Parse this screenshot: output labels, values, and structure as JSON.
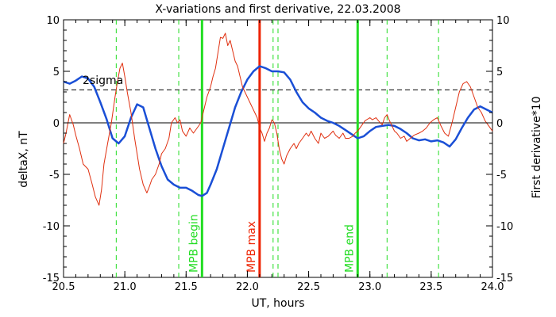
{
  "chart_data": {
    "type": "line",
    "title": "X-variations and first derivative, 22.03.2008",
    "xlabel": "UT, hours",
    "ylabel_left": "deltaX, nT",
    "ylabel_right": "First derivative*10",
    "xlim": [
      20.5,
      24.0
    ],
    "ylim_left": [
      -15,
      10
    ],
    "ylim_right": [
      -15,
      10
    ],
    "x_ticks": [
      "20.5",
      "21.0",
      "21.5",
      "22.0",
      "22.5",
      "23.0",
      "23.5",
      "24.0"
    ],
    "y_ticks_left": [
      "10",
      "5",
      "0",
      "-5",
      "-10",
      "-15"
    ],
    "y_ticks_right": [
      "10",
      "5",
      "0",
      "-5",
      "-10",
      "-15"
    ],
    "colors": {
      "deltaX": "#1a4fd6",
      "derivative": "#e03010",
      "mpb": "#22dd22",
      "max": "#ee2200",
      "axis_left_label": "#1a4fd6",
      "axis_right_label": "#e03010"
    },
    "sigma": {
      "label": "2sigma",
      "value": 3.2
    },
    "zero_line": 0,
    "vertical_lines": [
      {
        "x": 21.63,
        "label": "MPB begin",
        "kind": "mpb"
      },
      {
        "x": 22.1,
        "label": "MPB max",
        "kind": "max"
      },
      {
        "x": 22.9,
        "label": "MPB end",
        "kind": "mpb"
      }
    ],
    "dashed_verticals": [
      20.93,
      21.44,
      22.21,
      22.25,
      23.14,
      23.56
    ],
    "series": [
      {
        "key": "deltaX",
        "points": [
          [
            20.5,
            4.0
          ],
          [
            20.55,
            3.8
          ],
          [
            20.6,
            4.1
          ],
          [
            20.65,
            4.5
          ],
          [
            20.7,
            4.3
          ],
          [
            20.75,
            3.5
          ],
          [
            20.8,
            2.0
          ],
          [
            20.85,
            0.4
          ],
          [
            20.9,
            -1.5
          ],
          [
            20.95,
            -2.0
          ],
          [
            21.0,
            -1.3
          ],
          [
            21.05,
            0.5
          ],
          [
            21.1,
            1.8
          ],
          [
            21.15,
            1.5
          ],
          [
            21.2,
            -0.5
          ],
          [
            21.25,
            -2.5
          ],
          [
            21.3,
            -4.2
          ],
          [
            21.35,
            -5.5
          ],
          [
            21.4,
            -6.0
          ],
          [
            21.45,
            -6.3
          ],
          [
            21.5,
            -6.3
          ],
          [
            21.55,
            -6.6
          ],
          [
            21.6,
            -7.0
          ],
          [
            21.63,
            -7.1
          ],
          [
            21.67,
            -6.8
          ],
          [
            21.7,
            -6.0
          ],
          [
            21.75,
            -4.5
          ],
          [
            21.8,
            -2.5
          ],
          [
            21.85,
            -0.5
          ],
          [
            21.9,
            1.5
          ],
          [
            21.95,
            3.0
          ],
          [
            22.0,
            4.2
          ],
          [
            22.05,
            5.0
          ],
          [
            22.1,
            5.5
          ],
          [
            22.15,
            5.3
          ],
          [
            22.2,
            5.0
          ],
          [
            22.25,
            5.0
          ],
          [
            22.3,
            4.9
          ],
          [
            22.35,
            4.2
          ],
          [
            22.4,
            3.0
          ],
          [
            22.45,
            2.0
          ],
          [
            22.5,
            1.4
          ],
          [
            22.55,
            1.0
          ],
          [
            22.6,
            0.5
          ],
          [
            22.65,
            0.2
          ],
          [
            22.7,
            0.0
          ],
          [
            22.75,
            -0.3
          ],
          [
            22.8,
            -0.7
          ],
          [
            22.85,
            -1.1
          ],
          [
            22.9,
            -1.5
          ],
          [
            22.95,
            -1.3
          ],
          [
            23.0,
            -0.8
          ],
          [
            23.05,
            -0.4
          ],
          [
            23.1,
            -0.3
          ],
          [
            23.15,
            -0.2
          ],
          [
            23.2,
            -0.3
          ],
          [
            23.25,
            -0.6
          ],
          [
            23.3,
            -1.0
          ],
          [
            23.35,
            -1.5
          ],
          [
            23.4,
            -1.7
          ],
          [
            23.45,
            -1.6
          ],
          [
            23.5,
            -1.8
          ],
          [
            23.55,
            -1.7
          ],
          [
            23.6,
            -1.9
          ],
          [
            23.65,
            -2.3
          ],
          [
            23.7,
            -1.6
          ],
          [
            23.75,
            -0.5
          ],
          [
            23.8,
            0.5
          ],
          [
            23.85,
            1.3
          ],
          [
            23.9,
            1.6
          ],
          [
            23.95,
            1.3
          ],
          [
            24.0,
            1.0
          ]
        ]
      },
      {
        "key": "derivative",
        "points": [
          [
            20.5,
            -2.0
          ],
          [
            20.52,
            -1.0
          ],
          [
            20.55,
            0.8
          ],
          [
            20.58,
            -0.2
          ],
          [
            20.6,
            -1.2
          ],
          [
            20.63,
            -2.5
          ],
          [
            20.66,
            -4.0
          ],
          [
            20.7,
            -4.5
          ],
          [
            20.73,
            -5.8
          ],
          [
            20.76,
            -7.2
          ],
          [
            20.79,
            -8.0
          ],
          [
            20.81,
            -6.5
          ],
          [
            20.83,
            -4.0
          ],
          [
            20.86,
            -2.0
          ],
          [
            20.89,
            0.0
          ],
          [
            20.92,
            2.5
          ],
          [
            20.94,
            4.0
          ],
          [
            20.96,
            5.3
          ],
          [
            20.98,
            5.8
          ],
          [
            21.0,
            4.5
          ],
          [
            21.02,
            3.0
          ],
          [
            21.05,
            1.0
          ],
          [
            21.08,
            -1.5
          ],
          [
            21.1,
            -3.0
          ],
          [
            21.12,
            -4.5
          ],
          [
            21.15,
            -6.0
          ],
          [
            21.18,
            -6.8
          ],
          [
            21.2,
            -6.2
          ],
          [
            21.22,
            -5.5
          ],
          [
            21.25,
            -5.0
          ],
          [
            21.28,
            -4.0
          ],
          [
            21.3,
            -3.0
          ],
          [
            21.33,
            -2.5
          ],
          [
            21.36,
            -1.5
          ],
          [
            21.38,
            0.0
          ],
          [
            21.41,
            0.5
          ],
          [
            21.43,
            0.0
          ],
          [
            21.45,
            0.3
          ],
          [
            21.47,
            -0.8
          ],
          [
            21.5,
            -1.3
          ],
          [
            21.53,
            -0.5
          ],
          [
            21.56,
            -1.0
          ],
          [
            21.59,
            -0.5
          ],
          [
            21.62,
            0.0
          ],
          [
            21.65,
            1.5
          ],
          [
            21.67,
            2.5
          ],
          [
            21.7,
            3.5
          ],
          [
            21.72,
            4.5
          ],
          [
            21.74,
            5.3
          ],
          [
            21.76,
            6.8
          ],
          [
            21.78,
            8.3
          ],
          [
            21.8,
            8.2
          ],
          [
            21.82,
            8.7
          ],
          [
            21.84,
            7.5
          ],
          [
            21.86,
            8.0
          ],
          [
            21.88,
            7.0
          ],
          [
            21.9,
            6.0
          ],
          [
            21.92,
            5.5
          ],
          [
            21.94,
            4.5
          ],
          [
            21.96,
            3.5
          ],
          [
            21.98,
            3.0
          ],
          [
            22.0,
            2.5
          ],
          [
            22.02,
            2.0
          ],
          [
            22.04,
            1.5
          ],
          [
            22.06,
            1.0
          ],
          [
            22.08,
            0.5
          ],
          [
            22.1,
            -0.5
          ],
          [
            22.12,
            -1.0
          ],
          [
            22.14,
            -1.8
          ],
          [
            22.16,
            -1.0
          ],
          [
            22.18,
            -0.5
          ],
          [
            22.2,
            0.3
          ],
          [
            22.22,
            0.0
          ],
          [
            22.24,
            -1.0
          ],
          [
            22.26,
            -2.5
          ],
          [
            22.28,
            -3.5
          ],
          [
            22.3,
            -4.0
          ],
          [
            22.32,
            -3.2
          ],
          [
            22.35,
            -2.5
          ],
          [
            22.38,
            -2.0
          ],
          [
            22.4,
            -2.5
          ],
          [
            22.42,
            -2.0
          ],
          [
            22.45,
            -1.5
          ],
          [
            22.48,
            -1.0
          ],
          [
            22.5,
            -1.3
          ],
          [
            22.52,
            -0.8
          ],
          [
            22.55,
            -1.5
          ],
          [
            22.58,
            -2.0
          ],
          [
            22.6,
            -1.0
          ],
          [
            22.63,
            -1.5
          ],
          [
            22.66,
            -1.3
          ],
          [
            22.7,
            -0.8
          ],
          [
            22.72,
            -1.2
          ],
          [
            22.75,
            -1.5
          ],
          [
            22.78,
            -1.0
          ],
          [
            22.8,
            -1.5
          ],
          [
            22.83,
            -1.5
          ],
          [
            22.86,
            -1.3
          ],
          [
            22.88,
            -1.0
          ],
          [
            22.9,
            -0.8
          ],
          [
            22.93,
            -0.3
          ],
          [
            22.96,
            0.2
          ],
          [
            23.0,
            0.5
          ],
          [
            23.02,
            0.3
          ],
          [
            23.05,
            0.5
          ],
          [
            23.07,
            0.2
          ],
          [
            23.1,
            -0.2
          ],
          [
            23.12,
            0.5
          ],
          [
            23.14,
            0.8
          ],
          [
            23.16,
            0.2
          ],
          [
            23.18,
            -0.3
          ],
          [
            23.2,
            -0.8
          ],
          [
            23.22,
            -1.0
          ],
          [
            23.25,
            -1.5
          ],
          [
            23.28,
            -1.3
          ],
          [
            23.3,
            -1.8
          ],
          [
            23.33,
            -1.5
          ],
          [
            23.36,
            -1.2
          ],
          [
            23.4,
            -1.0
          ],
          [
            23.43,
            -0.8
          ],
          [
            23.46,
            -0.5
          ],
          [
            23.49,
            0.0
          ],
          [
            23.52,
            0.3
          ],
          [
            23.55,
            0.5
          ],
          [
            23.58,
            -0.3
          ],
          [
            23.61,
            -1.0
          ],
          [
            23.64,
            -1.3
          ],
          [
            23.67,
            0.0
          ],
          [
            23.7,
            1.5
          ],
          [
            23.73,
            3.0
          ],
          [
            23.76,
            3.8
          ],
          [
            23.79,
            4.0
          ],
          [
            23.82,
            3.5
          ],
          [
            23.85,
            2.5
          ],
          [
            23.88,
            1.5
          ],
          [
            23.91,
            1.0
          ],
          [
            23.94,
            0.2
          ],
          [
            23.97,
            -0.3
          ],
          [
            24.0,
            -0.8
          ]
        ]
      }
    ]
  }
}
